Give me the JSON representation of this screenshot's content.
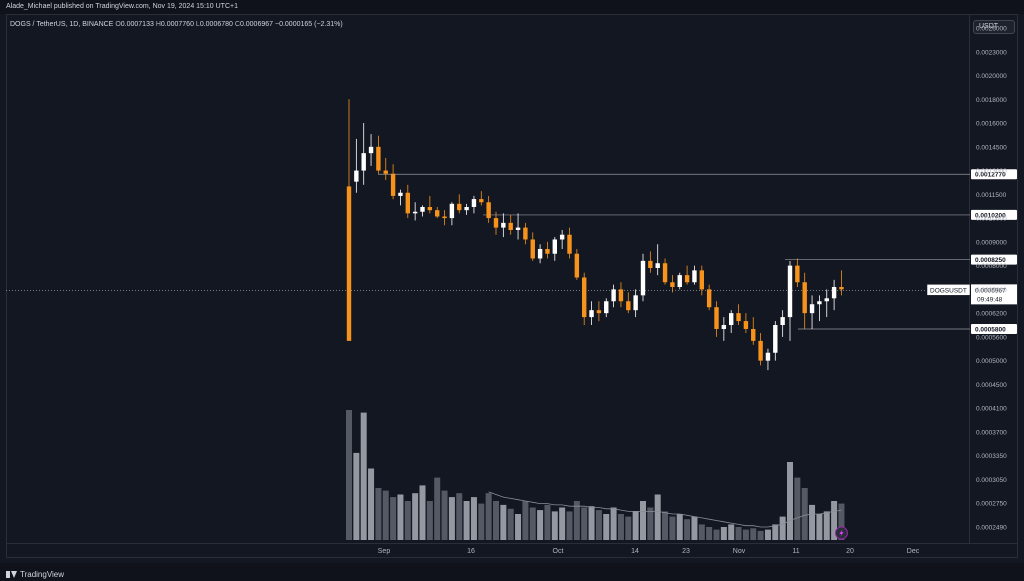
{
  "header": {
    "publisher": "Alade_Michael published on TradingView.com, Nov 19, 2024 15:10 UTC+1"
  },
  "legend": {
    "symbol": "DOGS / TetherUS, 1D, BINANCE",
    "o_label": "O",
    "o": "0.0007133",
    "h_label": "H",
    "h": "0.0007760",
    "l_label": "L",
    "l": "0.0006780",
    "c_label": "C",
    "c": "0.0006967",
    "change": "−0.0000165 (−2.31%)"
  },
  "scale_button": "USDT",
  "footer": {
    "brand": "TradingView"
  },
  "colors": {
    "up": "#ffffff",
    "down": "#f7931a",
    "bg": "#131722",
    "grid": "#2a2e39",
    "text": "#b2b5be"
  },
  "chart_data": {
    "type": "candlestick",
    "y_axis": {
      "ticks": [
        "0.0026000",
        "0.0023000",
        "0.0020000",
        "0.0018000",
        "0.0016000",
        "0.0014500",
        "0.0013000",
        "0.0011500",
        "0.0010000",
        "0.0009000",
        "0.0008000",
        "0.0007000",
        "0.0006200",
        "0.0005600",
        "0.0005000",
        "0.0004500",
        "0.0004100",
        "0.0003700",
        "0.0003350",
        "0.0003050",
        "0.0002750",
        "0.0002490"
      ]
    },
    "x_axis": {
      "ticks": [
        "Sep",
        "16",
        "Oct",
        "14",
        "23",
        "Nov",
        "11",
        "20",
        "Dec"
      ]
    },
    "horizontal_levels": [
      "0.0012770",
      "0.0010200",
      "0.0008250",
      "0.0005800"
    ],
    "last_price_label": {
      "symbol": "DOGSUSDT",
      "price": "0.0006967",
      "countdown": "09:49:48"
    },
    "candles": [
      [
        0.0012,
        0.0018,
        0.00055,
        0.00055
      ],
      [
        0.00123,
        0.0015,
        0.00116,
        0.0013
      ],
      [
        0.0013,
        0.0016,
        0.00121,
        0.00141
      ],
      [
        0.00141,
        0.00153,
        0.00133,
        0.00145
      ],
      [
        0.00145,
        0.00152,
        0.00128,
        0.0013
      ],
      [
        0.0013,
        0.00138,
        0.00124,
        0.00128
      ],
      [
        0.00128,
        0.00134,
        0.00112,
        0.00114
      ],
      [
        0.00114,
        0.00118,
        0.00108,
        0.00116
      ],
      [
        0.00116,
        0.00121,
        0.001,
        0.00103
      ],
      [
        0.00103,
        0.0011,
        0.00099,
        0.00104
      ],
      [
        0.00104,
        0.00108,
        0.00101,
        0.00107
      ],
      [
        0.00107,
        0.00114,
        0.00103,
        0.00105
      ],
      [
        0.00105,
        0.00107,
        0.001,
        0.00101
      ],
      [
        0.00101,
        0.00105,
        0.00097,
        0.001
      ],
      [
        0.001,
        0.0011,
        0.00097,
        0.00109
      ],
      [
        0.00109,
        0.00115,
        0.00103,
        0.00105
      ],
      [
        0.00105,
        0.00109,
        0.00102,
        0.00107
      ],
      [
        0.00107,
        0.00114,
        0.00103,
        0.00112
      ],
      [
        0.00112,
        0.00117,
        0.00108,
        0.0011
      ],
      [
        0.0011,
        0.00114,
        0.00098,
        0.001
      ],
      [
        0.001,
        0.00104,
        0.00093,
        0.00096
      ],
      [
        0.00096,
        0.00103,
        0.00092,
        0.00098
      ],
      [
        0.00098,
        0.00102,
        0.00093,
        0.00095
      ],
      [
        0.00095,
        0.00103,
        0.00091,
        0.00096
      ],
      [
        0.00096,
        0.00098,
        0.00089,
        0.00091
      ],
      [
        0.00091,
        0.00094,
        0.00082,
        0.00083
      ],
      [
        0.00083,
        0.00089,
        0.00081,
        0.00087
      ],
      [
        0.00087,
        0.0009,
        0.00083,
        0.00085
      ],
      [
        0.00085,
        0.00092,
        0.00082,
        0.00091
      ],
      [
        0.00091,
        0.00095,
        0.00087,
        0.00093
      ],
      [
        0.00093,
        0.00096,
        0.00083,
        0.00085
      ],
      [
        0.00085,
        0.00087,
        0.00074,
        0.00075
      ],
      [
        0.00075,
        0.00077,
        0.00059,
        0.00061
      ],
      [
        0.00061,
        0.00066,
        0.00059,
        0.00063
      ],
      [
        0.00063,
        0.00066,
        0.0006,
        0.00062
      ],
      [
        0.00062,
        0.00067,
        0.00061,
        0.00066
      ],
      [
        0.00066,
        0.00072,
        0.00064,
        0.0007
      ],
      [
        0.0007,
        0.00073,
        0.00064,
        0.00066
      ],
      [
        0.00066,
        0.00069,
        0.00062,
        0.00063
      ],
      [
        0.00063,
        0.0007,
        0.00061,
        0.00068
      ],
      [
        0.00068,
        0.00085,
        0.00066,
        0.00082
      ],
      [
        0.00082,
        0.00086,
        0.00077,
        0.00079
      ],
      [
        0.00079,
        0.00089,
        0.00076,
        0.00081
      ],
      [
        0.00081,
        0.00083,
        0.00072,
        0.00073
      ],
      [
        0.00073,
        0.00076,
        0.00069,
        0.00071
      ],
      [
        0.00071,
        0.00077,
        0.0007,
        0.00076
      ],
      [
        0.00076,
        0.0008,
        0.00072,
        0.00073
      ],
      [
        0.00073,
        0.0008,
        0.00072,
        0.00078
      ],
      [
        0.00078,
        0.0008,
        0.00068,
        0.0007
      ],
      [
        0.0007,
        0.00072,
        0.00063,
        0.00064
      ],
      [
        0.00064,
        0.00066,
        0.00056,
        0.00058
      ],
      [
        0.00058,
        0.00061,
        0.00055,
        0.00059
      ],
      [
        0.00059,
        0.00063,
        0.00057,
        0.00062
      ],
      [
        0.00062,
        0.00065,
        0.00059,
        0.0006
      ],
      [
        0.0006,
        0.00062,
        0.00057,
        0.00058
      ],
      [
        0.00058,
        0.00061,
        0.00054,
        0.00055
      ],
      [
        0.00055,
        0.00057,
        0.00049,
        0.0005
      ],
      [
        0.0005,
        0.00053,
        0.00048,
        0.00052
      ],
      [
        0.00052,
        0.0006,
        0.0005,
        0.00059
      ],
      [
        0.00059,
        0.00063,
        0.00056,
        0.00061
      ],
      [
        0.00061,
        0.00082,
        0.00055,
        0.0008
      ],
      [
        0.0008,
        0.00083,
        0.00071,
        0.00073
      ],
      [
        0.00073,
        0.00077,
        0.00058,
        0.00062
      ],
      [
        0.00062,
        0.00068,
        0.00058,
        0.00065
      ],
      [
        0.00065,
        0.00068,
        0.0006,
        0.00066
      ],
      [
        0.00066,
        0.0007,
        0.00061,
        0.00067
      ],
      [
        0.00067,
        0.00074,
        0.00063,
        0.00071
      ],
      [
        0.00071,
        0.00078,
        0.00068,
        0.0007
      ]
    ],
    "volume_relative": [
      1.0,
      0.67,
      0.98,
      0.55,
      0.4,
      0.38,
      0.33,
      0.35,
      0.3,
      0.36,
      0.42,
      0.3,
      0.48,
      0.38,
      0.33,
      0.36,
      0.3,
      0.33,
      0.28,
      0.36,
      0.3,
      0.27,
      0.24,
      0.2,
      0.3,
      0.25,
      0.23,
      0.27,
      0.22,
      0.25,
      0.22,
      0.3,
      0.25,
      0.26,
      0.23,
      0.2,
      0.25,
      0.2,
      0.18,
      0.22,
      0.3,
      0.25,
      0.35,
      0.22,
      0.18,
      0.2,
      0.16,
      0.18,
      0.12,
      0.1,
      0.08,
      0.1,
      0.12,
      0.1,
      0.08,
      0.09,
      0.07,
      0.08,
      0.12,
      0.18,
      0.6,
      0.48,
      0.4,
      0.27,
      0.2,
      0.22,
      0.3,
      0.28
    ],
    "volume_ma_relative": [
      null,
      null,
      null,
      null,
      null,
      null,
      null,
      null,
      null,
      null,
      null,
      null,
      null,
      null,
      null,
      null,
      null,
      null,
      null,
      0.37,
      0.35,
      0.33,
      0.32,
      0.31,
      0.3,
      0.29,
      0.28,
      0.28,
      0.27,
      0.27,
      0.26,
      0.26,
      0.26,
      0.25,
      0.25,
      0.24,
      0.24,
      0.23,
      0.22,
      0.22,
      0.22,
      0.22,
      0.22,
      0.21,
      0.2,
      0.2,
      0.19,
      0.18,
      0.17,
      0.16,
      0.15,
      0.14,
      0.13,
      0.12,
      0.11,
      0.11,
      0.1,
      0.1,
      0.11,
      0.12,
      0.15,
      0.17,
      0.19,
      0.2,
      0.2,
      0.21,
      0.22,
      0.23
    ]
  }
}
